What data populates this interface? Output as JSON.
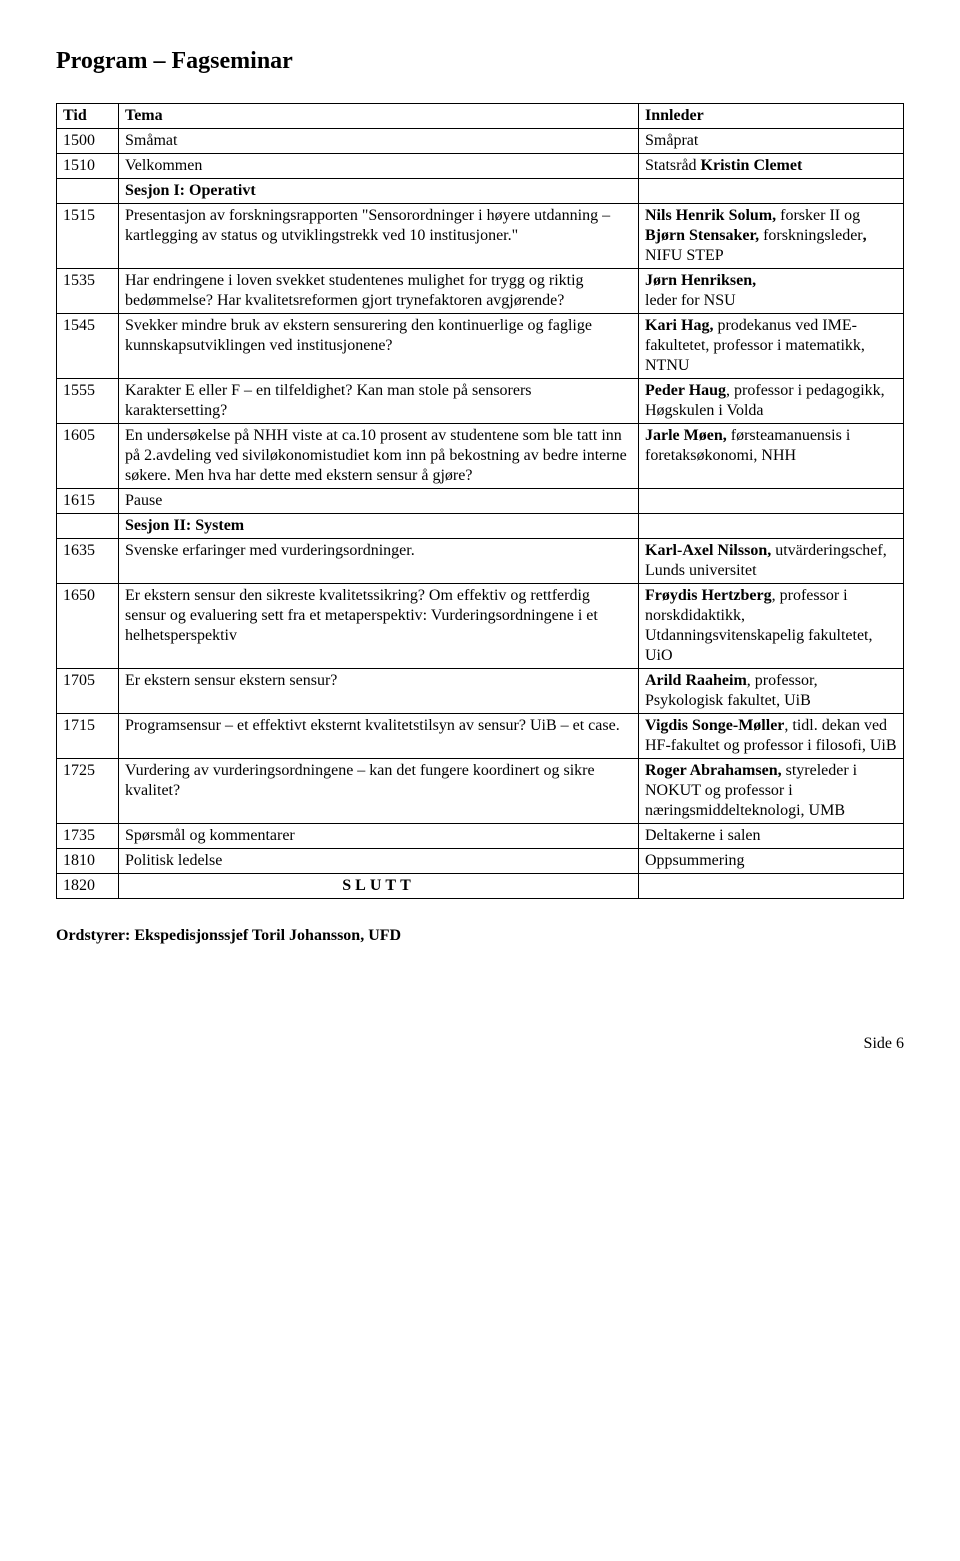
{
  "title": "Program – Fagseminar",
  "header": {
    "tid": "Tid",
    "tema": "Tema",
    "innleder": "Innleder"
  },
  "rows": [
    {
      "tid": "1500",
      "tema": "Småmat",
      "innleder": "Småprat"
    },
    {
      "tid": "1510",
      "tema": "Velkommen",
      "innleder_html": "Statsråd <b>Kristin Clemet</b>"
    },
    {
      "tid": "",
      "tema_html": "<span class='session'>Sesjon I: Operativt</span>",
      "innleder": ""
    },
    {
      "tid": "1515",
      "tema": "Presentasjon av forskningsrapporten \"Sensorordninger i høyere utdanning – kartlegging av status og utviklingstrekk ved 10 institusjoner.\"",
      "innleder_html": "<b>Nils Henrik Solum,</b> forsker II og <b>Bjørn Stensaker,</b> forskningsleder<b>,</b> NIFU STEP"
    },
    {
      "tid": "1535",
      "tema": "Har endringene i loven svekket studentenes mulighet for trygg og riktig bedømmelse? Har kvalitetsreformen gjort trynefaktoren avgjørende?",
      "innleder_html": "<b>Jørn Henriksen,</b><br>leder for NSU"
    },
    {
      "tid": "1545",
      "tema": "Svekker mindre bruk av ekstern sensurering den kontinuerlige og faglige kunnskapsutviklingen ved institusjonene?",
      "innleder_html": "<b>Kari Hag,</b> prodekanus ved IME-fakultetet, professor i matematikk, NTNU"
    },
    {
      "tid": "1555",
      "tema": "Karakter E eller F – en tilfeldighet? Kan man stole på sensorers karaktersetting?",
      "innleder_html": "<b>Peder Haug</b>, professor i pedagogikk, Høgskulen i Volda"
    },
    {
      "tid": "1605",
      "tema": "En undersøkelse på NHH viste at ca.10 prosent av studentene som ble tatt inn på 2.avdeling ved siviløkonomistudiet kom inn på bekostning av bedre interne søkere. Men hva har dette med ekstern sensur å gjøre?",
      "innleder_html": "<b>Jarle Møen,</b> førsteamanuensis i foretaksøkonomi, NHH"
    },
    {
      "tid": "1615",
      "tema": "Pause",
      "innleder": ""
    },
    {
      "tid": "",
      "tema_html": "<span class='session'>Sesjon II: System</span>",
      "innleder": ""
    },
    {
      "tid": "1635",
      "tema": "Svenske erfaringer med vurderingsordninger.",
      "innleder_html": "<b>Karl-Axel Nilsson,</b> utvärderingschef, Lunds universitet"
    },
    {
      "tid": "1650",
      "tema": "Er ekstern sensur den sikreste kvalitetssikring? Om effektiv og rettferdig sensur og evaluering sett fra et metaperspektiv: Vurderingsordningene i et helhetsperspektiv",
      "innleder_html": "<b>Frøydis Hertzberg</b>, professor i norskdidaktikk, Utdanningsvitenskapelig fakultetet, UiO"
    },
    {
      "tid": "1705",
      "tema": "Er ekstern sensur ekstern sensur?",
      "innleder_html": "<b>Arild Raaheim</b>, professor, Psykologisk fakultet, UiB"
    },
    {
      "tid": "1715",
      "tema": "Programsensur – et effektivt eksternt kvalitetstilsyn av sensur? UiB – et case.",
      "innleder_html": "<b>Vigdis Songe-Møller</b>, tidl. dekan ved HF-fakultet og professor i filosofi, UiB"
    },
    {
      "tid": "1725",
      "tema": "Vurdering av vurderingsordningene – kan det fungere koordinert og sikre kvalitet?",
      "innleder_html": "<b>Roger Abrahamsen,</b> styreleder i NOKUT og professor i næringsmiddelteknologi, UMB"
    },
    {
      "tid": "1735",
      "tema": "Spørsmål og kommentarer",
      "innleder": "Deltakerne i salen"
    },
    {
      "tid": "1810",
      "tema": "Politisk ledelse",
      "innleder": "Oppsummering"
    },
    {
      "tid": "1820",
      "tema_html": "<div class='center'>SLUTT</div>",
      "innleder": ""
    }
  ],
  "ordstyrer": "Ordstyrer: Ekspedisjonssjef Toril Johansson, UFD",
  "pagenum": "Side 6",
  "style": {
    "font_family": "Times New Roman",
    "title_fontsize": 24,
    "body_fontsize": 16,
    "border_color": "#000000",
    "background": "#ffffff",
    "col_widths": {
      "tid": 62,
      "tema": 520
    }
  }
}
